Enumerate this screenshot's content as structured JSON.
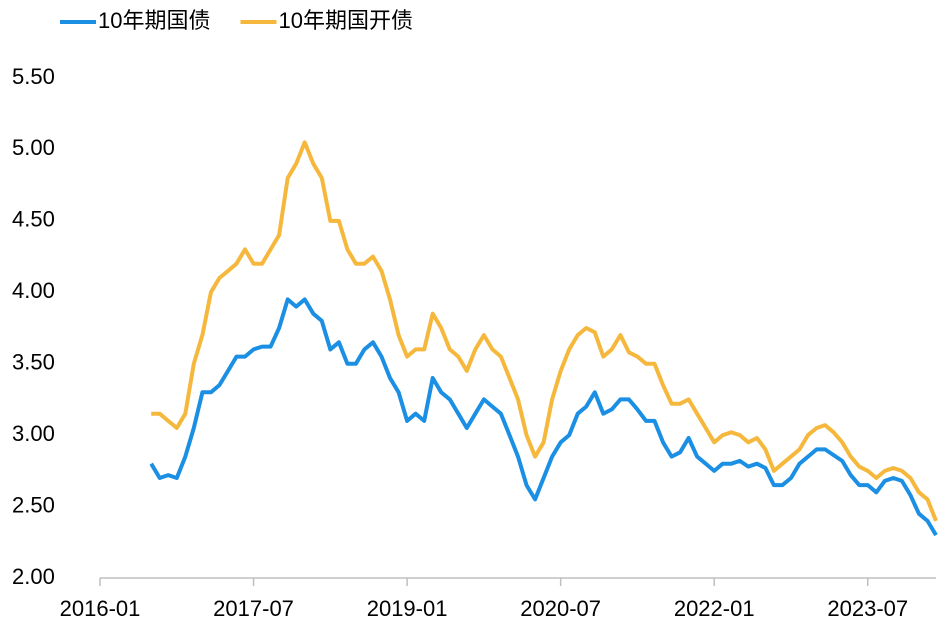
{
  "chart_data": {
    "type": "line",
    "x": [
      "2016-07",
      "2016-08",
      "2016-09",
      "2016-10",
      "2016-11",
      "2016-12",
      "2017-01",
      "2017-02",
      "2017-03",
      "2017-04",
      "2017-05",
      "2017-06",
      "2017-07",
      "2017-08",
      "2017-09",
      "2017-10",
      "2017-11",
      "2017-12",
      "2018-01",
      "2018-02",
      "2018-03",
      "2018-04",
      "2018-05",
      "2018-06",
      "2018-07",
      "2018-08",
      "2018-09",
      "2018-10",
      "2018-11",
      "2018-12",
      "2019-01",
      "2019-02",
      "2019-03",
      "2019-04",
      "2019-05",
      "2019-06",
      "2019-07",
      "2019-08",
      "2019-09",
      "2019-10",
      "2019-11",
      "2019-12",
      "2020-01",
      "2020-02",
      "2020-03",
      "2020-04",
      "2020-05",
      "2020-06",
      "2020-07",
      "2020-08",
      "2020-09",
      "2020-10",
      "2020-11",
      "2020-12",
      "2021-01",
      "2021-02",
      "2021-03",
      "2021-04",
      "2021-05",
      "2021-06",
      "2021-07",
      "2021-08",
      "2021-09",
      "2021-10",
      "2021-11",
      "2021-12",
      "2022-01",
      "2022-02",
      "2022-03",
      "2022-04",
      "2022-05",
      "2022-06",
      "2022-07",
      "2022-08",
      "2022-09",
      "2022-10",
      "2022-11",
      "2022-12",
      "2023-01",
      "2023-02",
      "2023-03",
      "2023-04",
      "2023-05",
      "2023-06",
      "2023-07",
      "2023-08",
      "2023-09",
      "2023-10",
      "2023-11",
      "2023-12",
      "2024-01",
      "2024-02",
      "2024-03"
    ],
    "series": [
      {
        "name": "10年期国债",
        "color": "#1a8fe3",
        "values": [
          2.8,
          2.7,
          2.72,
          2.7,
          2.85,
          3.05,
          3.3,
          3.3,
          3.35,
          3.45,
          3.55,
          3.55,
          3.6,
          3.62,
          3.62,
          3.75,
          3.95,
          3.9,
          3.95,
          3.85,
          3.8,
          3.6,
          3.65,
          3.5,
          3.5,
          3.6,
          3.65,
          3.55,
          3.4,
          3.3,
          3.1,
          3.15,
          3.1,
          3.4,
          3.3,
          3.25,
          3.15,
          3.05,
          3.15,
          3.25,
          3.2,
          3.15,
          3.0,
          2.85,
          2.65,
          2.55,
          2.7,
          2.85,
          2.95,
          3.0,
          3.15,
          3.2,
          3.3,
          3.15,
          3.18,
          3.25,
          3.25,
          3.18,
          3.1,
          3.1,
          2.95,
          2.85,
          2.88,
          2.98,
          2.85,
          2.8,
          2.75,
          2.8,
          2.8,
          2.82,
          2.78,
          2.8,
          2.77,
          2.65,
          2.65,
          2.7,
          2.8,
          2.85,
          2.9,
          2.9,
          2.86,
          2.82,
          2.72,
          2.65,
          2.65,
          2.6,
          2.68,
          2.7,
          2.68,
          2.58,
          2.45,
          2.4,
          2.3
        ]
      },
      {
        "name": "10年期国开债",
        "color": "#f5b83d",
        "values": [
          3.15,
          3.15,
          3.1,
          3.05,
          3.15,
          3.5,
          3.7,
          4.0,
          4.1,
          4.15,
          4.2,
          4.3,
          4.2,
          4.2,
          4.3,
          4.4,
          4.8,
          4.9,
          5.05,
          4.9,
          4.8,
          4.5,
          4.5,
          4.3,
          4.2,
          4.2,
          4.25,
          4.15,
          3.95,
          3.7,
          3.55,
          3.6,
          3.6,
          3.85,
          3.75,
          3.6,
          3.55,
          3.45,
          3.6,
          3.7,
          3.6,
          3.55,
          3.4,
          3.25,
          3.0,
          2.85,
          2.95,
          3.25,
          3.45,
          3.6,
          3.7,
          3.75,
          3.72,
          3.55,
          3.6,
          3.7,
          3.58,
          3.55,
          3.5,
          3.5,
          3.35,
          3.22,
          3.22,
          3.25,
          3.15,
          3.05,
          2.95,
          3.0,
          3.02,
          3.0,
          2.95,
          2.98,
          2.9,
          2.75,
          2.8,
          2.85,
          2.9,
          3.0,
          3.05,
          3.07,
          3.02,
          2.95,
          2.85,
          2.78,
          2.75,
          2.7,
          2.75,
          2.77,
          2.75,
          2.7,
          2.6,
          2.55,
          2.4
        ]
      }
    ],
    "xlim": [
      "2016-01",
      "2024-03"
    ],
    "xticks": [
      "2016-01",
      "2017-07",
      "2019-01",
      "2020-07",
      "2022-01",
      "2023-07"
    ],
    "ylim": [
      2,
      5.5
    ],
    "yticks": [
      {
        "value": 2,
        "label": "2.00"
      },
      {
        "value": 2.5,
        "label": "2.50"
      },
      {
        "value": 3,
        "label": "3.00"
      },
      {
        "value": 3.5,
        "label": "3.50"
      },
      {
        "value": 4,
        "label": "4.00"
      },
      {
        "value": 4.5,
        "label": "4.50"
      },
      {
        "value": 5,
        "label": "5.00"
      },
      {
        "value": 5.5,
        "label": "5.50"
      }
    ],
    "legend": "top-left"
  }
}
